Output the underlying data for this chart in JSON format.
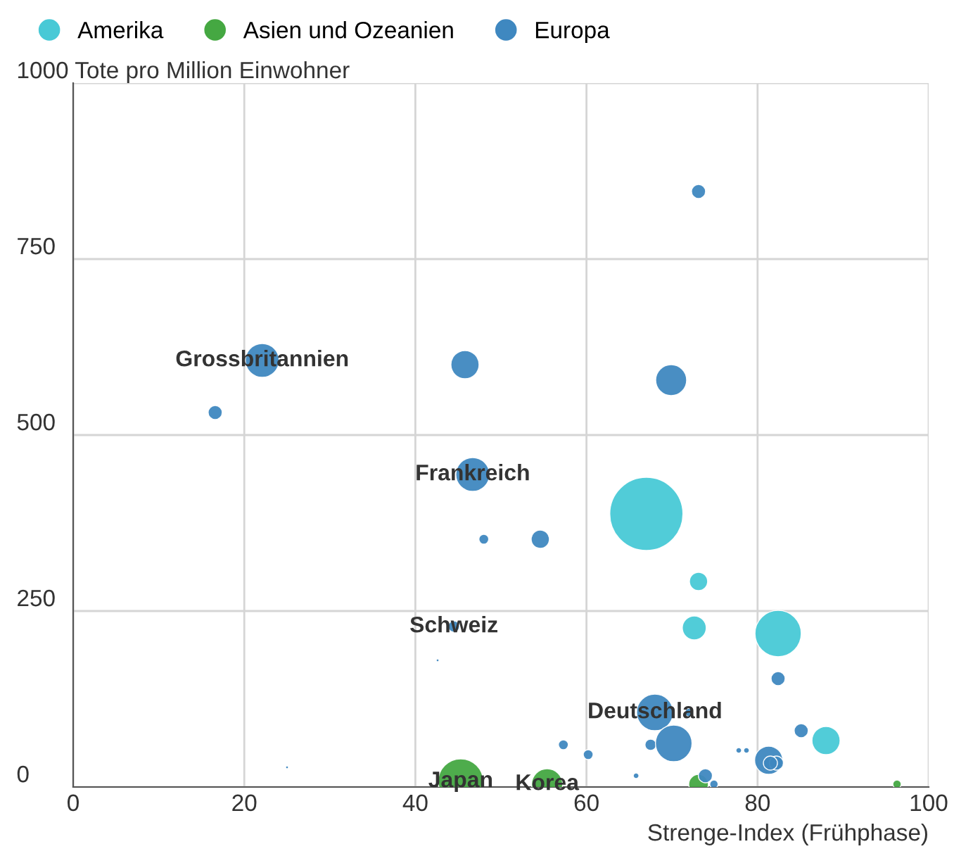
{
  "chart_data": {
    "type": "bubble",
    "xlabel": "Strenge-Index (Frühphase)",
    "xlim": [
      0,
      100
    ],
    "xticks": [
      0,
      20,
      40,
      60,
      80,
      100
    ],
    "ylim": [
      0,
      1000
    ],
    "yticks": [
      0,
      250,
      500,
      750,
      {
        "value": 1000,
        "label": "1000 Tote pro Million Einwohner"
      }
    ],
    "grid": true,
    "legend": "top left",
    "series": [
      {
        "name": "Amerika",
        "color": "#48c9d6",
        "x": [
          67.0,
          73.1,
          72.6,
          82.4,
          88.0
        ],
        "values": [
          388,
          292,
          226,
          218,
          66
        ],
        "sizes": [
          1,
          0.062,
          0.107,
          0.4,
          0.148
        ]
      },
      {
        "name": "Asien und Ozeanien",
        "color": "#45a842",
        "x": [
          45.3,
          55.4,
          73.1,
          96.3
        ],
        "values": [
          8,
          4,
          4,
          4
        ],
        "sizes": [
          0.38,
          0.18,
          0.072,
          0.013
        ]
      },
      {
        "name": "Europa",
        "color": "#3f88c0",
        "x": [
          73.1,
          22.1,
          16.6,
          45.8,
          69.9,
          46.7,
          48.0,
          54.6,
          44.5,
          42.6,
          25.0,
          82.4,
          68.0,
          72.0,
          57.3,
          60.2,
          67.5,
          70.2,
          65.8,
          77.8,
          78.7,
          85.1,
          81.3,
          82.2,
          81.5,
          73.9,
          74.9
        ],
        "values": [
          846,
          606,
          532,
          600,
          578,
          444,
          352,
          352,
          228,
          180,
          28,
          154,
          106,
          106,
          60,
          46,
          60,
          62,
          16,
          52,
          52,
          80,
          38,
          34,
          34,
          16,
          4
        ],
        "sizes": [
          0.037,
          0.213,
          0.037,
          0.148,
          0.179,
          0.213,
          0.018,
          0.062,
          0.024,
          0.0015,
          0.0015,
          0.037,
          0.25,
          0.013,
          0.018,
          0.018,
          0.024,
          0.25,
          0.006,
          0.006,
          0.006,
          0.037,
          0.148,
          0.037,
          0.037,
          0.037,
          0.013
        ]
      }
    ],
    "annotations": [
      {
        "text": "Grossbritannien",
        "x": 22.1,
        "y": 606
      },
      {
        "text": "Frankreich",
        "x": 46.7,
        "y": 444
      },
      {
        "text": "Schweiz",
        "x": 44.5,
        "y": 228
      },
      {
        "text": "Deutschland",
        "x": 68.0,
        "y": 106
      },
      {
        "text": "Japan",
        "x": 45.3,
        "y": 8
      },
      {
        "text": "Korea",
        "x": 55.4,
        "y": 4
      }
    ]
  }
}
